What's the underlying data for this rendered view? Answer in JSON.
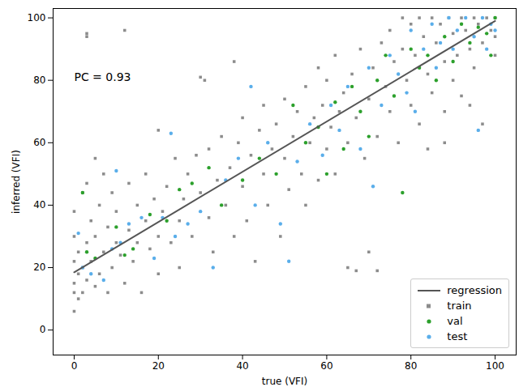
{
  "chart_data": {
    "type": "scatter",
    "x_label": "true (VFI)",
    "y_label": "inferred (VFI)",
    "xlim": [
      -5,
      105
    ],
    "ylim": [
      -8,
      103
    ],
    "xticks": [
      0,
      20,
      40,
      60,
      80,
      100
    ],
    "yticks": [
      0,
      20,
      40,
      60,
      80,
      100
    ],
    "grid": false,
    "legend": "lower right",
    "annotations": [
      {
        "text": "PC = 0.93",
        "x": 0,
        "y": 81
      }
    ],
    "series": [
      {
        "name": "regression",
        "type": "line",
        "line_style": "solid",
        "color": "#555555",
        "x": [
          0,
          100
        ],
        "values": [
          18.5,
          99
        ]
      },
      {
        "name": "train",
        "type": "scatter",
        "marker": "square",
        "color": "#8c8c8c",
        "x": [
          0,
          0,
          0,
          0,
          0,
          0,
          1,
          1,
          1,
          2,
          2,
          2,
          3,
          3,
          3,
          3,
          3,
          4,
          4,
          5,
          5,
          5,
          6,
          6,
          7,
          7,
          8,
          8,
          9,
          9,
          10,
          10,
          11,
          12,
          12,
          13,
          13,
          14,
          15,
          15,
          16,
          17,
          17,
          18,
          19,
          20,
          20,
          20,
          21,
          22,
          23,
          24,
          25,
          25,
          26,
          27,
          28,
          29,
          30,
          30,
          31,
          32,
          32,
          33,
          34,
          35,
          36,
          37,
          38,
          38,
          39,
          40,
          40,
          41,
          42,
          43,
          44,
          45,
          45,
          46,
          47,
          48,
          49,
          50,
          50,
          51,
          52,
          53,
          54,
          55,
          55,
          56,
          57,
          58,
          58,
          59,
          60,
          60,
          61,
          62,
          62,
          63,
          64,
          65,
          65,
          66,
          67,
          67,
          68,
          69,
          70,
          70,
          71,
          72,
          72,
          73,
          74,
          75,
          75,
          76,
          77,
          78,
          78,
          79,
          80,
          80,
          81,
          82,
          82,
          83,
          84,
          85,
          85,
          86,
          87,
          88,
          88,
          89,
          90,
          90,
          91,
          92,
          92,
          93,
          94,
          95,
          95,
          96,
          97,
          98,
          99,
          100,
          100,
          100,
          97,
          94,
          88,
          84
        ],
        "values": [
          6,
          12,
          15,
          22,
          30,
          38,
          10,
          18,
          25,
          12,
          20,
          44,
          16,
          28,
          47,
          94,
          95,
          22,
          35,
          14,
          30,
          55,
          18,
          40,
          25,
          50,
          12,
          33,
          20,
          44,
          28,
          38,
          24,
          15,
          96,
          32,
          47,
          22,
          40,
          28,
          12,
          35,
          50,
          26,
          42,
          18,
          30,
          64,
          38,
          46,
          28,
          55,
          35,
          20,
          42,
          50,
          30,
          56,
          81,
          44,
          80,
          36,
          58,
          25,
          48,
          62,
          40,
          52,
          86,
          30,
          60,
          46,
          68,
          35,
          56,
          22,
          64,
          50,
          72,
          40,
          58,
          66,
          30,
          55,
          74,
          45,
          62,
          70,
          50,
          78,
          40,
          60,
          68,
          48,
          84,
          72,
          58,
          80,
          65,
          50,
          88,
          70,
          76,
          20,
          60,
          82,
          19,
          68,
          90,
          55,
          25,
          74,
          84,
          19,
          62,
          92,
          78,
          70,
          96,
          86,
          60,
          100,
          90,
          80,
          72,
          98,
          88,
          100,
          66,
          94,
          82,
          100,
          76,
          92,
          98,
          86,
          70,
          100,
          95,
          80,
          88,
          100,
          75,
          96,
          90,
          100,
          84,
          98,
          92,
          100,
          96,
          100,
          94,
          88,
          66,
          72,
          60,
          58
        ]
      },
      {
        "name": "val",
        "type": "scatter",
        "marker": "circle",
        "color": "#2ca02c",
        "x": [
          2,
          3,
          5,
          10,
          12,
          14,
          18,
          22,
          25,
          28,
          32,
          35,
          40,
          44,
          48,
          52,
          55,
          58,
          60,
          62,
          64,
          66,
          68,
          70,
          72,
          74,
          76,
          78,
          80,
          82,
          84,
          86,
          88,
          90,
          92,
          94,
          96,
          98,
          100,
          99
        ],
        "values": [
          44,
          25,
          23,
          33,
          24,
          26,
          37,
          35,
          45,
          47,
          52,
          40,
          48,
          55,
          50,
          72,
          60,
          65,
          50,
          73,
          58,
          78,
          70,
          62,
          80,
          88,
          75,
          44,
          90,
          84,
          88,
          80,
          94,
          86,
          98,
          92,
          97,
          95,
          100,
          88
        ]
      },
      {
        "name": "test",
        "type": "scatter",
        "marker": "circle",
        "color": "#5aaeea",
        "x": [
          1,
          2,
          4,
          7,
          9,
          10,
          11,
          13,
          16,
          19,
          21,
          23,
          24,
          27,
          30,
          33,
          36,
          39,
          42,
          43,
          46,
          49,
          51,
          53,
          56,
          59,
          61,
          63,
          65,
          68,
          70,
          71,
          73,
          75,
          77,
          79,
          80,
          81,
          83,
          85,
          86,
          87,
          89,
          90,
          91,
          93,
          95,
          96,
          97,
          98,
          99,
          100
        ],
        "values": [
          31,
          20,
          18,
          16,
          26,
          51,
          28,
          34,
          36,
          23,
          36,
          63,
          30,
          34,
          38,
          20,
          48,
          55,
          78,
          40,
          60,
          34,
          22,
          54,
          66,
          56,
          72,
          64,
          78,
          58,
          84,
          46,
          72,
          88,
          82,
          76,
          96,
          70,
          90,
          98,
          84,
          92,
          100,
          90,
          96,
          100,
          94,
          64,
          100,
          90,
          98,
          96
        ]
      }
    ]
  }
}
